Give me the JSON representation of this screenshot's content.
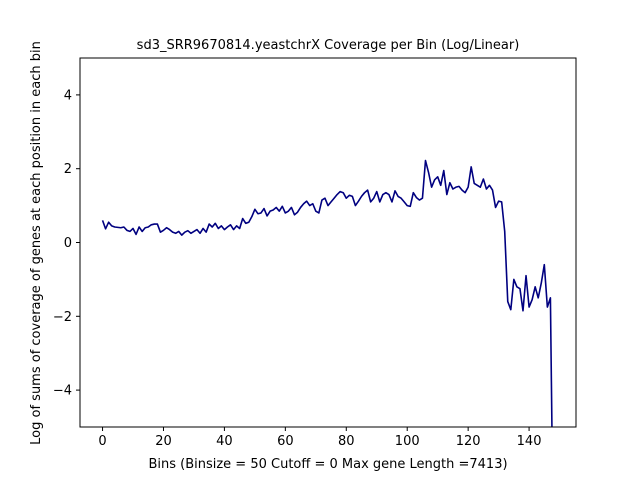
{
  "chart_data": {
    "type": "line",
    "title": "sd3_SRR9670814.yeastchrX Coverage per Bin (Log/Linear)",
    "xlabel": "Bins  (Binsize = 50 Cutoff = 0 Max gene Length =7413)",
    "ylabel": "Log of sums of coverage of genes at each position in each bin",
    "xlim": [
      -7.4,
      155.4
    ],
    "ylim": [
      -5,
      5
    ],
    "xticks": [
      0,
      20,
      40,
      60,
      80,
      100,
      120,
      140
    ],
    "yticks": [
      -4,
      -2,
      0,
      2,
      4
    ],
    "grid": false,
    "line_color": "#000080",
    "series": [
      {
        "x": [
          0,
          1,
          2,
          3,
          4,
          5,
          6,
          7,
          8,
          9,
          10,
          11,
          12,
          13,
          14,
          15,
          16,
          17,
          18,
          19,
          20,
          21,
          22,
          23,
          24,
          25,
          26,
          27,
          28,
          29,
          30,
          31,
          32,
          33,
          34,
          35,
          36,
          37,
          38,
          39,
          40,
          41,
          42,
          43,
          44,
          45,
          46,
          47,
          48,
          49,
          50,
          51,
          52,
          53,
          54,
          55,
          56,
          57,
          58,
          59,
          60,
          61,
          62,
          63,
          64,
          65,
          66,
          67,
          68,
          69,
          70,
          71,
          72,
          73,
          74,
          75,
          76,
          77,
          78,
          79,
          80,
          81,
          82,
          83,
          84,
          85,
          86,
          87,
          88,
          89,
          90,
          91,
          92,
          93,
          94,
          95,
          96,
          97,
          98,
          99,
          100,
          101,
          102,
          103,
          104,
          105,
          106,
          107,
          108,
          109,
          110,
          111,
          112,
          113,
          114,
          115,
          116,
          117,
          118,
          119,
          120,
          121,
          122,
          123,
          124,
          125,
          126,
          127,
          128,
          129,
          130,
          131,
          132,
          133,
          134,
          135,
          136,
          137,
          138,
          139,
          140,
          141,
          142,
          143,
          144,
          145,
          146,
          147,
          147.5
        ],
        "y": [
          0.6,
          0.37,
          0.55,
          0.45,
          0.42,
          0.41,
          0.4,
          0.42,
          0.33,
          0.3,
          0.38,
          0.22,
          0.42,
          0.3,
          0.4,
          0.42,
          0.48,
          0.5,
          0.5,
          0.28,
          0.33,
          0.4,
          0.35,
          0.28,
          0.25,
          0.3,
          0.2,
          0.28,
          0.32,
          0.25,
          0.3,
          0.35,
          0.25,
          0.38,
          0.28,
          0.5,
          0.42,
          0.52,
          0.38,
          0.45,
          0.35,
          0.42,
          0.48,
          0.35,
          0.45,
          0.38,
          0.65,
          0.52,
          0.55,
          0.7,
          0.9,
          0.78,
          0.8,
          0.92,
          0.72,
          0.85,
          0.88,
          0.95,
          0.85,
          0.98,
          0.8,
          0.85,
          0.95,
          0.75,
          0.82,
          0.95,
          1.05,
          1.12,
          1.0,
          1.05,
          0.85,
          0.8,
          1.15,
          1.2,
          1.0,
          1.1,
          1.2,
          1.3,
          1.38,
          1.35,
          1.2,
          1.28,
          1.25,
          1.0,
          1.12,
          1.25,
          1.35,
          1.42,
          1.1,
          1.2,
          1.38,
          1.1,
          1.3,
          1.35,
          1.3,
          1.1,
          1.4,
          1.25,
          1.2,
          1.1,
          1.0,
          0.98,
          1.35,
          1.22,
          1.15,
          1.2,
          2.22,
          1.9,
          1.5,
          1.7,
          1.78,
          1.55,
          1.95,
          1.3,
          1.62,
          1.45,
          1.5,
          1.52,
          1.42,
          1.35,
          1.5,
          2.05,
          1.6,
          1.55,
          1.5,
          1.72,
          1.45,
          1.55,
          1.42,
          0.95,
          1.12,
          1.1,
          0.3,
          -1.6,
          -1.82,
          -1.0,
          -1.2,
          -1.25,
          -1.85,
          -0.9,
          -1.75,
          -1.55,
          -1.2,
          -1.5,
          -1.1,
          -0.6,
          -1.75,
          -1.5,
          -5.0
        ]
      }
    ]
  }
}
